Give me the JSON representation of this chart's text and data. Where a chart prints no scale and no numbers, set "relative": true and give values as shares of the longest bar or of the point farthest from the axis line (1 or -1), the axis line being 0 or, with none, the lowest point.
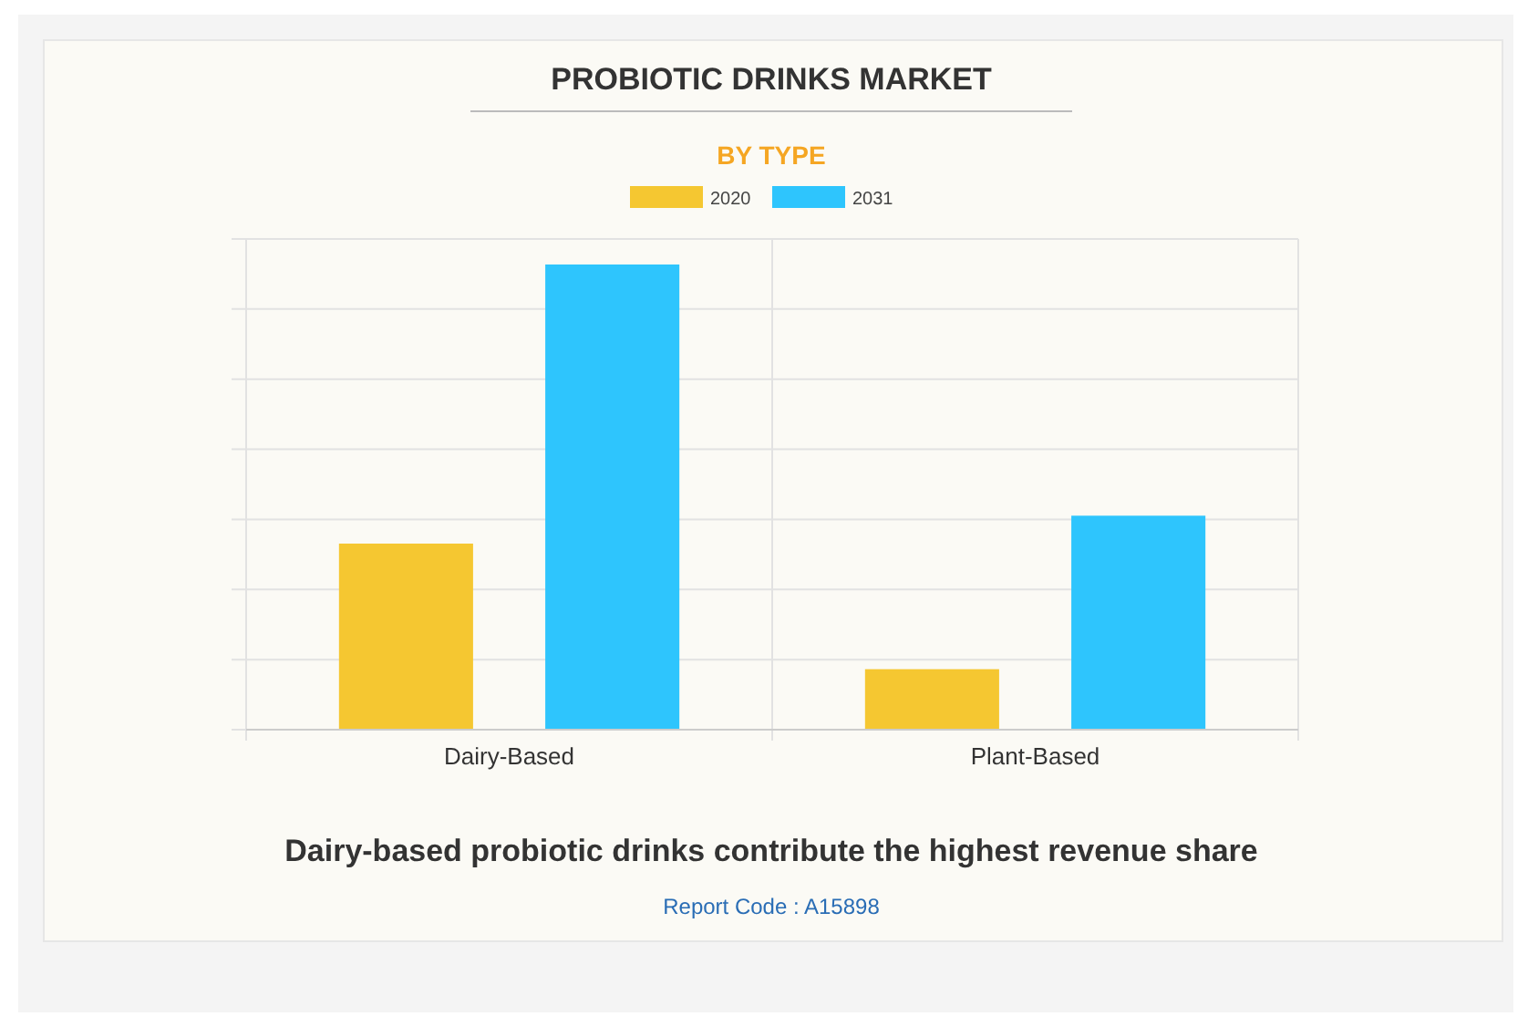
{
  "chart_data": {
    "type": "bar",
    "title": "PROBIOTIC DRINKS MARKET",
    "subtitle": "BY TYPE",
    "categories": [
      "Dairy-Based",
      "Plant-Based"
    ],
    "series": [
      {
        "name": "2020",
        "color": "#f5c731",
        "values": [
          0.4,
          0.13
        ]
      },
      {
        "name": "2031",
        "color": "#2ec5fd",
        "values": [
          1,
          0.46
        ]
      }
    ],
    "relative": true,
    "grid": true,
    "legend": "top",
    "annotations": [
      "Dairy-based probiotic drinks contribute the highest revenue share",
      "Report Code : A15898"
    ]
  }
}
